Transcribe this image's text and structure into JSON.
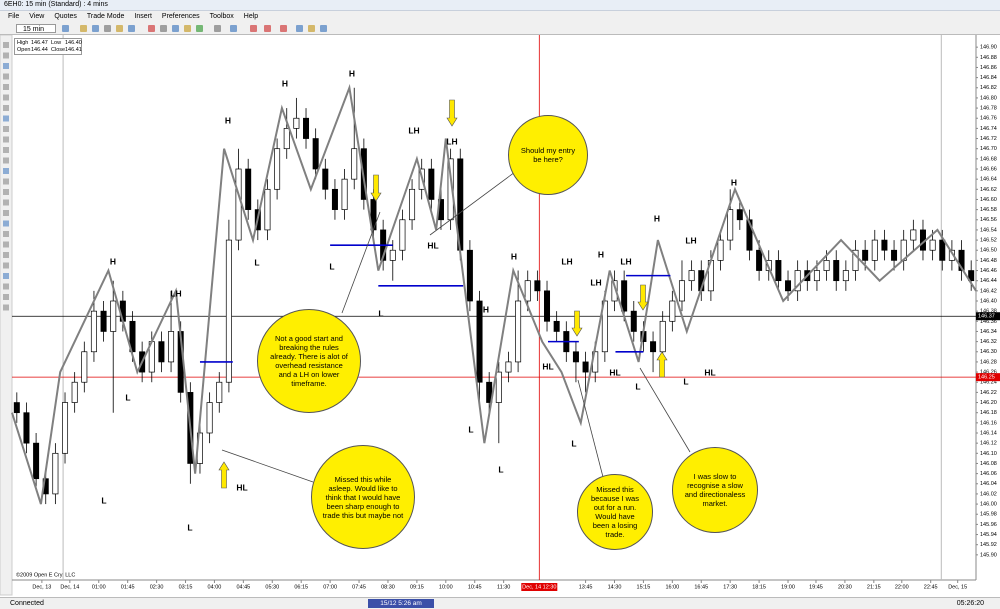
{
  "window": {
    "title": "6EH0: 15 min (Standard) : 4 mins",
    "menu": [
      "File",
      "View",
      "Quotes",
      "Trade Mode",
      "Insert",
      "Preferences",
      "Toolbox",
      "Help"
    ],
    "interval": "15 min"
  },
  "info_box": {
    "high_label": "High",
    "high": "146.47",
    "low_label": "Low",
    "low": "146.40",
    "open_label": "Open",
    "open": "146.44",
    "close_label": "Close",
    "close": "146.41"
  },
  "chart_data": {
    "type": "candlestick",
    "xlim": [
      0,
      100
    ],
    "ylim": [
      145.88,
      146.92
    ],
    "xticks": [
      {
        "value": 3.1,
        "label": "Dec, 13"
      },
      {
        "value": 6,
        "label": "Dec, 14"
      },
      {
        "value": 9,
        "label": "01:00"
      },
      {
        "value": 12,
        "label": "01:45"
      },
      {
        "value": 15,
        "label": "02:30"
      },
      {
        "value": 18,
        "label": "03:15"
      },
      {
        "value": 21,
        "label": "04:00"
      },
      {
        "value": 24,
        "label": "04:45"
      },
      {
        "value": 27,
        "label": "05:30"
      },
      {
        "value": 30,
        "label": "06:15"
      },
      {
        "value": 33,
        "label": "07:00"
      },
      {
        "value": 36,
        "label": "07:45"
      },
      {
        "value": 39,
        "label": "08:30"
      },
      {
        "value": 42,
        "label": "09:15"
      },
      {
        "value": 45,
        "label": "10:00"
      },
      {
        "value": 48,
        "label": "10:45"
      },
      {
        "value": 51,
        "label": "11:30"
      },
      {
        "value": 59.5,
        "label": "13:45"
      },
      {
        "value": 62.5,
        "label": "14:30"
      },
      {
        "value": 65.5,
        "label": "15:15"
      },
      {
        "value": 68.5,
        "label": "16:00"
      },
      {
        "value": 71.5,
        "label": "16:45"
      },
      {
        "value": 74.5,
        "label": "17:30"
      },
      {
        "value": 77.5,
        "label": "18:15"
      },
      {
        "value": 80.5,
        "label": "19:00"
      },
      {
        "value": 83.4,
        "label": "19:45"
      },
      {
        "value": 86.4,
        "label": "20:30"
      },
      {
        "value": 89.4,
        "label": "21:15"
      },
      {
        "value": 92.3,
        "label": "22:00"
      },
      {
        "value": 95.3,
        "label": "22:45"
      },
      {
        "value": 98.1,
        "label": "Dec, 15"
      }
    ],
    "yticks": [
      {
        "value": 145.9,
        "label": "145.90"
      },
      {
        "value": 145.92,
        "label": "145.92"
      },
      {
        "value": 145.94,
        "label": "145.94"
      },
      {
        "value": 145.96,
        "label": "145.96"
      },
      {
        "value": 145.98,
        "label": "145.98"
      },
      {
        "value": 146,
        "label": "146.00"
      },
      {
        "value": 146.02,
        "label": "146.02"
      },
      {
        "value": 146.04,
        "label": "146.04"
      },
      {
        "value": 146.06,
        "label": "146.06"
      },
      {
        "value": 146.08,
        "label": "146.08"
      },
      {
        "value": 146.1,
        "label": "146.10"
      },
      {
        "value": 146.12,
        "label": "146.12"
      },
      {
        "value": 146.14,
        "label": "146.14"
      },
      {
        "value": 146.16,
        "label": "146.16"
      },
      {
        "value": 146.18,
        "label": "146.18"
      },
      {
        "value": 146.2,
        "label": "146.20"
      },
      {
        "value": 146.22,
        "label": "146.22"
      },
      {
        "value": 146.24,
        "label": "146.24"
      },
      {
        "value": 146.26,
        "label": "146.26"
      },
      {
        "value": 146.28,
        "label": "146.28"
      },
      {
        "value": 146.3,
        "label": "146.30"
      },
      {
        "value": 146.32,
        "label": "146.32"
      },
      {
        "value": 146.34,
        "label": "146.34"
      },
      {
        "value": 146.36,
        "label": "146.36"
      },
      {
        "value": 146.38,
        "label": "146.38"
      },
      {
        "value": 146.4,
        "label": "146.40"
      },
      {
        "value": 146.42,
        "label": "146.42"
      },
      {
        "value": 146.44,
        "label": "146.44"
      },
      {
        "value": 146.46,
        "label": "146.46"
      },
      {
        "value": 146.48,
        "label": "146.48"
      },
      {
        "value": 146.5,
        "label": "146.50"
      },
      {
        "value": 146.52,
        "label": "146.52"
      },
      {
        "value": 146.54,
        "label": "146.54"
      },
      {
        "value": 146.56,
        "label": "146.56"
      },
      {
        "value": 146.58,
        "label": "146.58"
      },
      {
        "value": 146.6,
        "label": "146.60"
      },
      {
        "value": 146.62,
        "label": "146.62"
      },
      {
        "value": 146.64,
        "label": "146.64"
      },
      {
        "value": 146.66,
        "label": "146.66"
      },
      {
        "value": 146.68,
        "label": "146.68"
      },
      {
        "value": 146.7,
        "label": "146.70"
      },
      {
        "value": 146.72,
        "label": "146.72"
      },
      {
        "value": 146.74,
        "label": "146.74"
      },
      {
        "value": 146.76,
        "label": "146.76"
      },
      {
        "value": 146.78,
        "label": "146.78"
      },
      {
        "value": 146.8,
        "label": "146.80"
      },
      {
        "value": 146.82,
        "label": "146.82"
      },
      {
        "value": 146.84,
        "label": "146.84"
      },
      {
        "value": 146.86,
        "label": "146.86"
      },
      {
        "value": 146.88,
        "label": "146.88"
      },
      {
        "value": 146.9,
        "label": "146.90"
      }
    ],
    "ohlc": [
      [
        146.2,
        146.22,
        146.16,
        146.18
      ],
      [
        146.18,
        146.2,
        146.1,
        146.12
      ],
      [
        146.12,
        146.14,
        146.03,
        146.05
      ],
      [
        146.05,
        146.07,
        146.0,
        146.02
      ],
      [
        146.02,
        146.12,
        146.0,
        146.1
      ],
      [
        146.1,
        146.22,
        146.08,
        146.2
      ],
      [
        146.2,
        146.26,
        146.18,
        146.24
      ],
      [
        146.24,
        146.32,
        146.22,
        146.3
      ],
      [
        146.3,
        146.42,
        146.28,
        146.38
      ],
      [
        146.38,
        146.4,
        146.32,
        146.34
      ],
      [
        146.34,
        146.44,
        146.18,
        146.4
      ],
      [
        146.4,
        146.42,
        146.34,
        146.36
      ],
      [
        146.36,
        146.38,
        146.28,
        146.3
      ],
      [
        146.3,
        146.32,
        146.24,
        146.26
      ],
      [
        146.26,
        146.34,
        146.24,
        146.32
      ],
      [
        146.32,
        146.34,
        146.26,
        146.28
      ],
      [
        146.28,
        146.42,
        146.26,
        146.34
      ],
      [
        146.34,
        146.36,
        146.2,
        146.22
      ],
      [
        146.22,
        146.24,
        146.04,
        146.08
      ],
      [
        146.08,
        146.16,
        146.06,
        146.14
      ],
      [
        146.14,
        146.22,
        146.12,
        146.2
      ],
      [
        146.2,
        146.26,
        146.18,
        146.24
      ],
      [
        146.24,
        146.56,
        146.22,
        146.52
      ],
      [
        146.52,
        146.7,
        146.5,
        146.66
      ],
      [
        146.66,
        146.68,
        146.56,
        146.58
      ],
      [
        146.58,
        146.6,
        146.52,
        146.54
      ],
      [
        146.54,
        146.64,
        146.52,
        146.62
      ],
      [
        146.62,
        146.72,
        146.6,
        146.7
      ],
      [
        146.7,
        146.78,
        146.68,
        146.74
      ],
      [
        146.74,
        146.8,
        146.72,
        146.76
      ],
      [
        146.76,
        146.78,
        146.7,
        146.72
      ],
      [
        146.72,
        146.74,
        146.64,
        146.66
      ],
      [
        146.66,
        146.68,
        146.6,
        146.62
      ],
      [
        146.62,
        146.64,
        146.56,
        146.58
      ],
      [
        146.58,
        146.66,
        146.56,
        146.64
      ],
      [
        146.64,
        146.82,
        146.62,
        146.7
      ],
      [
        146.7,
        146.72,
        146.58,
        146.6
      ],
      [
        146.6,
        146.62,
        146.52,
        146.54
      ],
      [
        146.54,
        146.56,
        146.46,
        146.48
      ],
      [
        146.48,
        146.52,
        146.44,
        146.5
      ],
      [
        146.5,
        146.58,
        146.48,
        146.56
      ],
      [
        146.56,
        146.64,
        146.54,
        146.62
      ],
      [
        146.62,
        146.68,
        146.6,
        146.66
      ],
      [
        146.66,
        146.68,
        146.58,
        146.6
      ],
      [
        146.6,
        146.62,
        146.54,
        146.56
      ],
      [
        146.56,
        146.7,
        146.54,
        146.68
      ],
      [
        146.68,
        146.7,
        146.48,
        146.5
      ],
      [
        146.5,
        146.52,
        146.38,
        146.4
      ],
      [
        146.4,
        146.42,
        146.2,
        146.24
      ],
      [
        146.24,
        146.26,
        146.18,
        146.2
      ],
      [
        146.2,
        146.28,
        146.12,
        146.26
      ],
      [
        146.26,
        146.3,
        146.24,
        146.28
      ],
      [
        146.28,
        146.46,
        146.26,
        146.4
      ],
      [
        146.4,
        146.46,
        146.38,
        146.44
      ],
      [
        146.44,
        146.46,
        146.4,
        146.42
      ],
      [
        146.42,
        146.44,
        146.34,
        146.36
      ],
      [
        146.36,
        146.38,
        146.32,
        146.34
      ],
      [
        146.34,
        146.36,
        146.28,
        146.3
      ],
      [
        146.3,
        146.32,
        146.24,
        146.28
      ],
      [
        146.28,
        146.3,
        146.22,
        146.26
      ],
      [
        146.26,
        146.32,
        146.24,
        146.3
      ],
      [
        146.3,
        146.42,
        146.28,
        146.4
      ],
      [
        146.4,
        146.46,
        146.38,
        146.44
      ],
      [
        146.44,
        146.46,
        146.36,
        146.38
      ],
      [
        146.38,
        146.4,
        146.32,
        146.34
      ],
      [
        146.34,
        146.36,
        146.3,
        146.32
      ],
      [
        146.32,
        146.34,
        146.26,
        146.3
      ],
      [
        146.3,
        146.38,
        146.28,
        146.36
      ],
      [
        146.36,
        146.42,
        146.34,
        146.4
      ],
      [
        146.4,
        146.48,
        146.38,
        146.44
      ],
      [
        146.44,
        146.48,
        146.42,
        146.46
      ],
      [
        146.46,
        146.48,
        146.4,
        146.42
      ],
      [
        146.42,
        146.5,
        146.4,
        146.48
      ],
      [
        146.48,
        146.54,
        146.46,
        146.52
      ],
      [
        146.52,
        146.62,
        146.5,
        146.58
      ],
      [
        146.58,
        146.6,
        146.54,
        146.56
      ],
      [
        146.56,
        146.58,
        146.48,
        146.5
      ],
      [
        146.5,
        146.52,
        146.44,
        146.46
      ],
      [
        146.46,
        146.5,
        146.44,
        146.48
      ],
      [
        146.48,
        146.5,
        146.42,
        146.44
      ],
      [
        146.44,
        146.46,
        146.4,
        146.42
      ],
      [
        146.42,
        146.48,
        146.4,
        146.46
      ],
      [
        146.46,
        146.48,
        146.42,
        146.44
      ],
      [
        146.44,
        146.48,
        146.42,
        146.46
      ],
      [
        146.46,
        146.5,
        146.44,
        146.48
      ],
      [
        146.48,
        146.5,
        146.42,
        146.44
      ],
      [
        146.44,
        146.48,
        146.42,
        146.46
      ],
      [
        146.46,
        146.52,
        146.44,
        146.5
      ],
      [
        146.5,
        146.52,
        146.46,
        146.48
      ],
      [
        146.48,
        146.54,
        146.46,
        146.52
      ],
      [
        146.52,
        146.54,
        146.48,
        146.5
      ],
      [
        146.5,
        146.52,
        146.46,
        146.48
      ],
      [
        146.48,
        146.54,
        146.46,
        146.52
      ],
      [
        146.52,
        146.56,
        146.5,
        146.54
      ],
      [
        146.54,
        146.56,
        146.48,
        146.5
      ],
      [
        146.5,
        146.54,
        146.48,
        146.52
      ],
      [
        146.52,
        146.54,
        146.46,
        146.48
      ],
      [
        146.48,
        146.52,
        146.46,
        146.5
      ],
      [
        146.5,
        146.52,
        146.44,
        146.46
      ],
      [
        146.46,
        146.48,
        146.42,
        146.44
      ]
    ],
    "swing": {
      "x": [
        0,
        3,
        5,
        10,
        13,
        17,
        19,
        22,
        25,
        28,
        31,
        35,
        38,
        42,
        44,
        45,
        49,
        52,
        55,
        57,
        59,
        62,
        65,
        67,
        70,
        75,
        80,
        86,
        90,
        96,
        100
      ],
      "y": [
        146.18,
        146.0,
        146.26,
        146.46,
        146.26,
        146.42,
        146.06,
        146.7,
        146.52,
        146.78,
        146.62,
        146.82,
        146.46,
        146.68,
        146.54,
        146.72,
        146.12,
        146.46,
        146.32,
        146.26,
        146.16,
        146.46,
        146.28,
        146.52,
        146.34,
        146.62,
        146.4,
        146.52,
        146.44,
        146.54,
        146.42
      ],
      "color": "#808080"
    },
    "levels": [
      {
        "x": [
          19.5,
          22.9
        ],
        "y": 146.28
      },
      {
        "x": [
          33,
          39.5
        ],
        "y": 146.51
      },
      {
        "x": [
          38,
          46.8
        ],
        "y": 146.43
      },
      {
        "x": [
          55.6,
          58.8
        ],
        "y": 146.32
      },
      {
        "x": [
          63.7,
          68.3
        ],
        "y": 146.45
      },
      {
        "x": [
          62.6,
          65.5
        ],
        "y": 146.3
      }
    ],
    "level_color": "#0000cc",
    "session_lines": [
      5.3,
      96.4
    ],
    "last_price": {
      "value": 146.37,
      "label": "146.37",
      "color": "#000000"
    },
    "crosshair": {
      "x": {
        "value": 54.7,
        "label": "Dec, 14 12:30"
      },
      "y": {
        "value": 146.25,
        "label": "146.25"
      },
      "color": "#e00000"
    },
    "annotations": [
      "H",
      "LH",
      "L",
      "L",
      "L",
      "HL",
      "H",
      "H",
      "H",
      "L",
      "L",
      "LH",
      "LH",
      "HL",
      "L",
      "H",
      "L",
      "L",
      "H",
      "HL",
      "LH",
      "L",
      "LH",
      "H",
      "LH",
      "HL",
      "L",
      "L",
      "HL",
      "H",
      "LH",
      "H"
    ],
    "callouts": [
      "Should my entry be here?",
      "Not a good start and breaking the rules already. There is alot of overhead resistance and a LH on lower timeframe.",
      "Missed this while asleep. Would like to think that I would have been sharp enough to trade this but maybe not",
      "Missed this because I was out for a run. Would have been a losing trade.",
      "I was slow to recognise a slow and directionaless market."
    ],
    "copyright": "©2009 Open E Cry, LLC"
  },
  "status_bar": {
    "state": "Connected",
    "datetime": "15/12  5:26 am",
    "clock": "05:26:20"
  }
}
